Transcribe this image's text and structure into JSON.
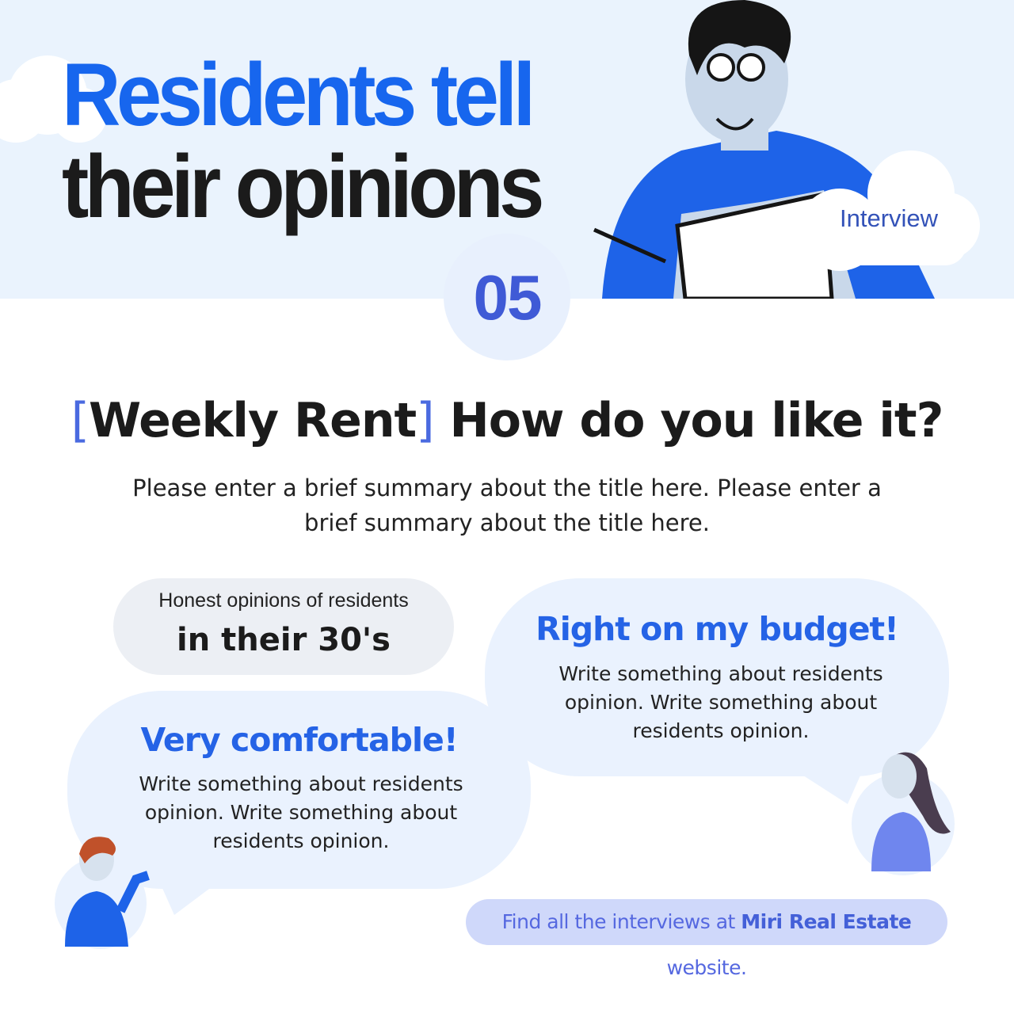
{
  "header": {
    "title_line1": "Residents tell",
    "title_line2": "their opinions",
    "badge": "Interview",
    "number": "05"
  },
  "question": {
    "bracket_open": "[",
    "category": "Weekly Rent",
    "bracket_close": "]",
    "text": " How do you like it?",
    "summary": "Please enter a brief summary about the title here. Please enter a brief summary about the title here."
  },
  "age_group": {
    "label": "Honest opinions of residents",
    "value": "in their 30's"
  },
  "opinions": [
    {
      "title": "Right on my budget!",
      "body": "Write something about residents opinion. Write something about residents opinion."
    },
    {
      "title": "Very comfortable!",
      "body": "Write something about residents opinion. Write something about residents opinion."
    }
  ],
  "footer": {
    "prefix": "Find all the interviews at ",
    "brand": "Miri Real Estate",
    "suffix": " website."
  },
  "colors": {
    "accent": "#1766ee",
    "number": "#3f5ad6",
    "bubble": "#eaf2fe",
    "footer_bg": "#cfd8fa"
  }
}
